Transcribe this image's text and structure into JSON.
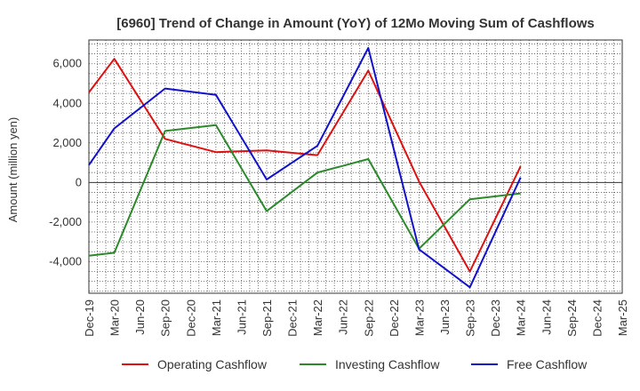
{
  "chart_data": {
    "type": "line",
    "title": "[6960]  Trend of Change in Amount (YoY) of 12Mo Moving Sum of Cashflows",
    "xlabel": "",
    "ylabel": "Amount (million yen)",
    "ylim": [
      -5600,
      7200
    ],
    "yticks": [
      -4000,
      -2000,
      0,
      2000,
      4000,
      6000
    ],
    "ytick_labels": [
      "-4,000",
      "-2,000",
      "0",
      "2,000",
      "4,000",
      "6,000"
    ],
    "categories": [
      "Dec-19",
      "Mar-20",
      "Jun-20",
      "Sep-20",
      "Dec-20",
      "Mar-21",
      "Jun-21",
      "Sep-21",
      "Dec-21",
      "Mar-22",
      "Jun-22",
      "Sep-22",
      "Dec-22",
      "Mar-23",
      "Jun-23",
      "Sep-23",
      "Dec-23",
      "Mar-24",
      "Jun-24",
      "Sep-24",
      "Dec-24",
      "Mar-25"
    ],
    "grid": true,
    "legend_position": "bottom",
    "series": [
      {
        "name": "Operating Cashflow",
        "color": "#dd1111",
        "points": [
          {
            "x": "Dec-19",
            "y": 4550
          },
          {
            "x": "Mar-20",
            "y": 6250
          },
          {
            "x": "Sep-20",
            "y": 2200
          },
          {
            "x": "Mar-21",
            "y": 1530
          },
          {
            "x": "Sep-21",
            "y": 1620
          },
          {
            "x": "Mar-22",
            "y": 1380
          },
          {
            "x": "Sep-22",
            "y": 5650
          },
          {
            "x": "Mar-23",
            "y": 50
          },
          {
            "x": "Sep-23",
            "y": -4500
          },
          {
            "x": "Mar-24",
            "y": 820
          }
        ]
      },
      {
        "name": "Investing Cashflow",
        "color": "#2a8a2a",
        "points": [
          {
            "x": "Dec-19",
            "y": -3700
          },
          {
            "x": "Mar-20",
            "y": -3550
          },
          {
            "x": "Sep-20",
            "y": 2600
          },
          {
            "x": "Mar-21",
            "y": 2900
          },
          {
            "x": "Sep-21",
            "y": -1450
          },
          {
            "x": "Mar-22",
            "y": 500
          },
          {
            "x": "Sep-22",
            "y": 1180
          },
          {
            "x": "Mar-23",
            "y": -3350
          },
          {
            "x": "Sep-23",
            "y": -850
          },
          {
            "x": "Mar-24",
            "y": -550
          }
        ]
      },
      {
        "name": "Free Cashflow",
        "color": "#1111cc",
        "points": [
          {
            "x": "Dec-19",
            "y": 880
          },
          {
            "x": "Mar-20",
            "y": 2730
          },
          {
            "x": "Sep-20",
            "y": 4750
          },
          {
            "x": "Mar-21",
            "y": 4430
          },
          {
            "x": "Sep-21",
            "y": 150
          },
          {
            "x": "Mar-22",
            "y": 1850
          },
          {
            "x": "Sep-22",
            "y": 6800
          },
          {
            "x": "Mar-23",
            "y": -3380
          },
          {
            "x": "Sep-23",
            "y": -5300
          },
          {
            "x": "Mar-24",
            "y": 250
          }
        ]
      }
    ]
  }
}
